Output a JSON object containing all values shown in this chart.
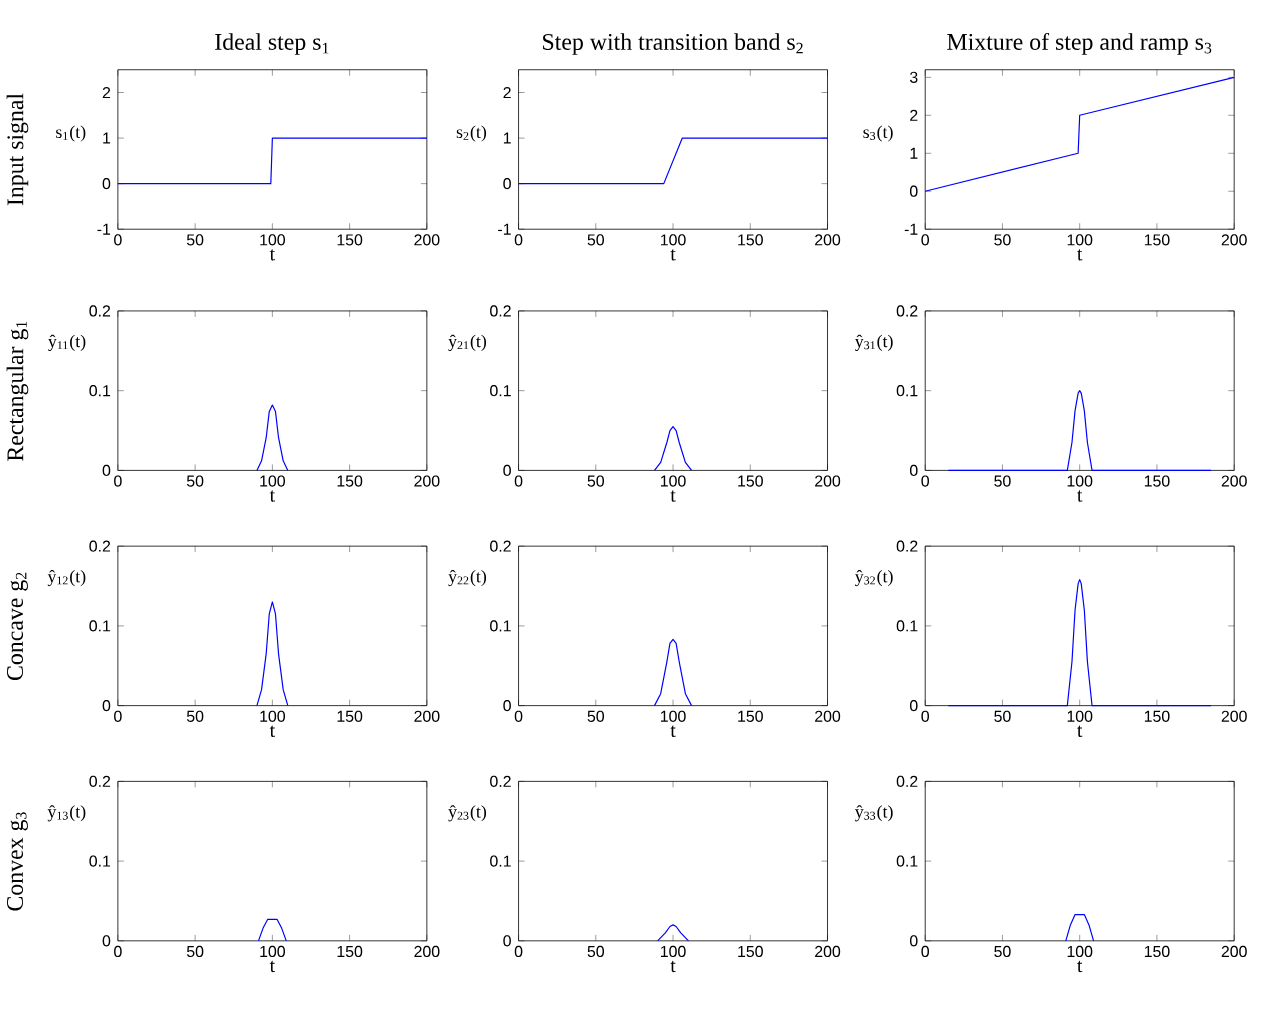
{
  "chart_data": [
    {
      "type": "line",
      "title": "Ideal step s$_{1}$",
      "annotations": [
        "Input signal"
      ],
      "xlabel": "t",
      "ylabel": "s$_{1}$(t)",
      "x": [
        0,
        99,
        100,
        200
      ],
      "values": [
        0,
        0,
        1,
        1
      ],
      "color": "#0000ff",
      "xlim": [
        0,
        200
      ],
      "ylim": [
        -1,
        2.5
      ],
      "xticks": [
        0,
        50,
        100,
        150,
        200
      ],
      "yticks": [
        -1,
        0,
        1,
        2
      ]
    },
    {
      "type": "line",
      "title": "Step with transition band s$_{2}$",
      "xlabel": "t",
      "ylabel": "s$_{2}$(t)",
      "x": [
        0,
        94,
        106,
        200
      ],
      "values": [
        0,
        0,
        1,
        1
      ],
      "color": "#0000ff",
      "xlim": [
        0,
        200
      ],
      "ylim": [
        -1,
        2.5
      ],
      "xticks": [
        0,
        50,
        100,
        150,
        200
      ],
      "yticks": [
        -1,
        0,
        1,
        2
      ]
    },
    {
      "type": "line",
      "title": "Mixture of step and ramp s$_{3}$",
      "xlabel": "t",
      "ylabel": "s$_{3}$(t)",
      "x": [
        0,
        99,
        100,
        200
      ],
      "values": [
        0,
        1,
        2,
        3
      ],
      "color": "#0000ff",
      "xlim": [
        0,
        200
      ],
      "ylim": [
        -1,
        3.2
      ],
      "xticks": [
        0,
        50,
        100,
        150,
        200
      ],
      "yticks": [
        -1,
        0,
        1,
        2,
        3
      ]
    },
    {
      "type": "line",
      "annotations": [
        "Rectangular g$_{1}$"
      ],
      "xlabel": "t",
      "ylabel": "ŷ$_{11}$(t)",
      "x": [
        90,
        93,
        96,
        98,
        100,
        102,
        104,
        107,
        110
      ],
      "values": [
        0,
        0.012,
        0.041,
        0.074,
        0.082,
        0.074,
        0.041,
        0.012,
        0
      ],
      "color": "#0000ff",
      "xlim": [
        0,
        200
      ],
      "ylim": [
        0,
        0.2
      ],
      "xticks": [
        0,
        50,
        100,
        150,
        200
      ],
      "yticks": [
        0,
        0.1,
        0.2
      ]
    },
    {
      "type": "line",
      "xlabel": "t",
      "ylabel": "ŷ$_{21}$(t)",
      "x": [
        88,
        92,
        96,
        98,
        100,
        102,
        104,
        108,
        112
      ],
      "values": [
        0,
        0.01,
        0.035,
        0.05,
        0.055,
        0.05,
        0.035,
        0.01,
        0
      ],
      "color": "#0000ff",
      "xlim": [
        0,
        200
      ],
      "ylim": [
        0,
        0.2
      ],
      "xticks": [
        0,
        50,
        100,
        150,
        200
      ],
      "yticks": [
        0,
        0.1,
        0.2
      ]
    },
    {
      "type": "line",
      "xlabel": "t",
      "ylabel": "ŷ$_{31}$(t)",
      "x": [
        15,
        92,
        95,
        97,
        99,
        100,
        101,
        103,
        105,
        108,
        185
      ],
      "values": [
        0,
        0,
        0.035,
        0.075,
        0.097,
        0.1,
        0.097,
        0.075,
        0.035,
        0,
        0
      ],
      "color": "#0000ff",
      "xlim": [
        0,
        200
      ],
      "ylim": [
        0,
        0.2
      ],
      "xticks": [
        0,
        50,
        100,
        150,
        200
      ],
      "yticks": [
        0,
        0.1,
        0.2
      ]
    },
    {
      "type": "line",
      "annotations": [
        "Concave g$_{2}$"
      ],
      "xlabel": "t",
      "ylabel": "ŷ$_{12}$(t)",
      "x": [
        90,
        93,
        96,
        98,
        100,
        102,
        104,
        107,
        110
      ],
      "values": [
        0,
        0.02,
        0.065,
        0.115,
        0.13,
        0.115,
        0.065,
        0.02,
        0
      ],
      "color": "#0000ff",
      "xlim": [
        0,
        200
      ],
      "ylim": [
        0,
        0.2
      ],
      "xticks": [
        0,
        50,
        100,
        150,
        200
      ],
      "yticks": [
        0,
        0.1,
        0.2
      ]
    },
    {
      "type": "line",
      "xlabel": "t",
      "ylabel": "ŷ$_{22}$(t)",
      "x": [
        88,
        92,
        96,
        98,
        100,
        102,
        104,
        108,
        112
      ],
      "values": [
        0,
        0.015,
        0.055,
        0.078,
        0.083,
        0.078,
        0.055,
        0.015,
        0
      ],
      "color": "#0000ff",
      "xlim": [
        0,
        200
      ],
      "ylim": [
        0,
        0.2
      ],
      "xticks": [
        0,
        50,
        100,
        150,
        200
      ],
      "yticks": [
        0,
        0.1,
        0.2
      ]
    },
    {
      "type": "line",
      "xlabel": "t",
      "ylabel": "ŷ$_{32}$(t)",
      "x": [
        15,
        92,
        95,
        97,
        99,
        100,
        101,
        103,
        105,
        108,
        185
      ],
      "values": [
        0,
        0,
        0.055,
        0.12,
        0.153,
        0.158,
        0.153,
        0.12,
        0.055,
        0,
        0
      ],
      "color": "#0000ff",
      "xlim": [
        0,
        200
      ],
      "ylim": [
        0,
        0.2
      ],
      "xticks": [
        0,
        50,
        100,
        150,
        200
      ],
      "yticks": [
        0,
        0.1,
        0.2
      ]
    },
    {
      "type": "line",
      "annotations": [
        "Convex g$_{3}$"
      ],
      "xlabel": "t",
      "ylabel": "ŷ$_{13}$(t)",
      "x": [
        91,
        94,
        97,
        103,
        106,
        109
      ],
      "values": [
        0,
        0.016,
        0.027,
        0.027,
        0.016,
        0
      ],
      "color": "#0000ff",
      "xlim": [
        0,
        200
      ],
      "ylim": [
        0,
        0.2
      ],
      "xticks": [
        0,
        50,
        100,
        150,
        200
      ],
      "yticks": [
        0,
        0.1,
        0.2
      ]
    },
    {
      "type": "line",
      "xlabel": "t",
      "ylabel": "ŷ$_{23}$(t)",
      "x": [
        90,
        95,
        98,
        100,
        102,
        105,
        110
      ],
      "values": [
        0,
        0.01,
        0.018,
        0.02,
        0.018,
        0.01,
        0
      ],
      "color": "#0000ff",
      "xlim": [
        0,
        200
      ],
      "ylim": [
        0,
        0.2
      ],
      "xticks": [
        0,
        50,
        100,
        150,
        200
      ],
      "yticks": [
        0,
        0.1,
        0.2
      ]
    },
    {
      "type": "line",
      "xlabel": "t",
      "ylabel": "ŷ$_{33}$(t)",
      "x": [
        91,
        94,
        97,
        103,
        106,
        109
      ],
      "values": [
        0,
        0.02,
        0.033,
        0.033,
        0.02,
        0
      ],
      "color": "#0000ff",
      "xlim": [
        0,
        200
      ],
      "ylim": [
        0,
        0.2
      ],
      "xticks": [
        0,
        50,
        100,
        150,
        200
      ],
      "yticks": [
        0,
        0.1,
        0.2
      ]
    }
  ]
}
